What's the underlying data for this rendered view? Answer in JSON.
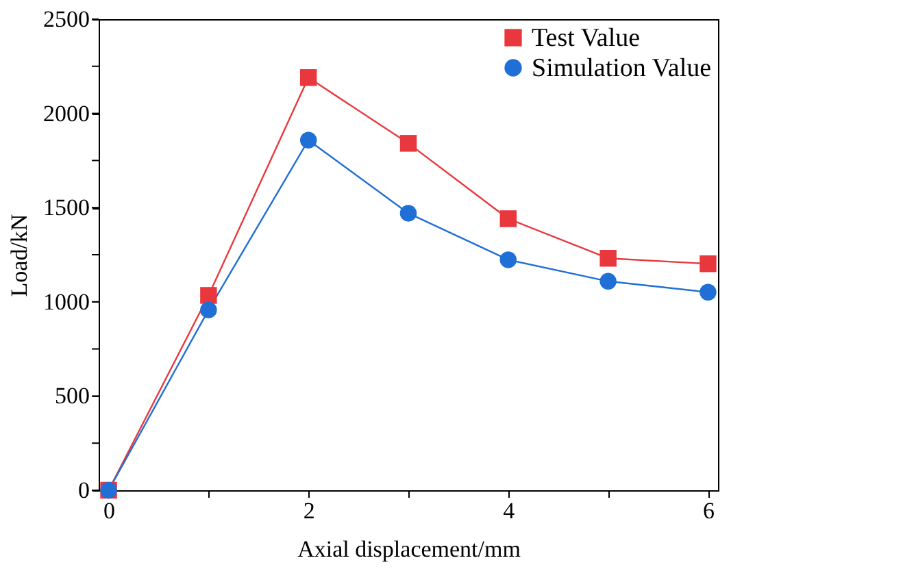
{
  "chart_data": {
    "type": "line",
    "xlabel": "Axial displacement/mm",
    "ylabel": "Load/kN",
    "x": [
      0,
      1,
      2,
      3,
      4,
      5,
      6
    ],
    "series": [
      {
        "name": "Test Value",
        "color": "#e8383d",
        "marker": "square",
        "values": [
          0,
          1034,
          2190,
          1841,
          1441,
          1231,
          1202
        ]
      },
      {
        "name": "Simulation Value",
        "color": "#1f6fd6",
        "marker": "circle",
        "values": [
          0,
          957,
          1858,
          1470,
          1223,
          1109,
          1051
        ]
      }
    ],
    "xlim": [
      -0.1,
      6.1
    ],
    "xticks": [
      0,
      {
        "value": 1,
        "label": null
      },
      2,
      {
        "value": 3,
        "label": null
      },
      4,
      {
        "value": 5,
        "label": null
      },
      6
    ],
    "ylim": [
      0,
      2500
    ],
    "yticks": [
      0,
      {
        "value": 250,
        "label": null
      },
      500,
      {
        "value": 750,
        "label": null
      },
      1000,
      {
        "value": 1250,
        "label": null
      },
      1500,
      {
        "value": 1750,
        "label": null
      },
      2000,
      {
        "value": 2250,
        "label": null
      },
      2500
    ],
    "legend": "top right",
    "grid": false
  }
}
